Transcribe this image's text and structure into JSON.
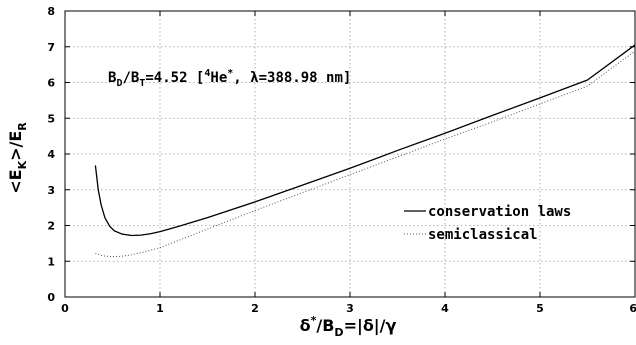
{
  "chart_data": {
    "type": "line",
    "xlim": [
      0,
      6
    ],
    "ylim": [
      0,
      8
    ],
    "x_ticks": [
      "0",
      "1",
      "2",
      "3",
      "4",
      "5",
      "6"
    ],
    "y_ticks": [
      "0",
      "1",
      "2",
      "3",
      "4",
      "5",
      "6",
      "7",
      "8"
    ],
    "xlabel": {
      "main": "δ",
      "sup": "*",
      "a": "/B",
      "sub": "D",
      "b": "=|δ|/γ"
    },
    "ylabel": {
      "a": "<E",
      "sub1": "K",
      "b": ">/E",
      "sub2": "R"
    },
    "annotation": {
      "a": "B",
      "sub1": "D",
      "b": "/B",
      "sub2": "T",
      "c": "=4.52 [",
      "sup": "4",
      "d": "He",
      "sup2": "*",
      "e": ", λ=388.98 nm]"
    },
    "grid": true,
    "legend_position": "right",
    "series": [
      {
        "name": "conservation laws",
        "style": "solid",
        "color": "#000000",
        "x": [
          0.32,
          0.35,
          0.38,
          0.42,
          0.47,
          0.52,
          0.6,
          0.7,
          0.8,
          0.9,
          1.0,
          1.2,
          1.5,
          2.0,
          2.5,
          3.0,
          3.5,
          4.0,
          4.5,
          5.0,
          5.5,
          6.0
        ],
        "y": [
          3.68,
          3.0,
          2.58,
          2.22,
          1.98,
          1.85,
          1.76,
          1.72,
          1.73,
          1.77,
          1.83,
          1.98,
          2.22,
          2.66,
          3.13,
          3.6,
          4.1,
          4.58,
          5.08,
          5.57,
          6.07,
          7.05
        ]
      },
      {
        "name": "semiclassical",
        "style": "dotted",
        "color": "#555555",
        "x": [
          0.32,
          0.4,
          0.5,
          0.6,
          0.7,
          0.8,
          1.0,
          1.5,
          2.0,
          2.5,
          3.0,
          3.5,
          4.0,
          4.5,
          5.0,
          5.5,
          6.0
        ],
        "y": [
          1.22,
          1.15,
          1.13,
          1.14,
          1.18,
          1.24,
          1.38,
          1.9,
          2.42,
          2.92,
          3.42,
          3.92,
          4.42,
          4.9,
          5.4,
          5.9,
          6.88
        ]
      }
    ]
  }
}
